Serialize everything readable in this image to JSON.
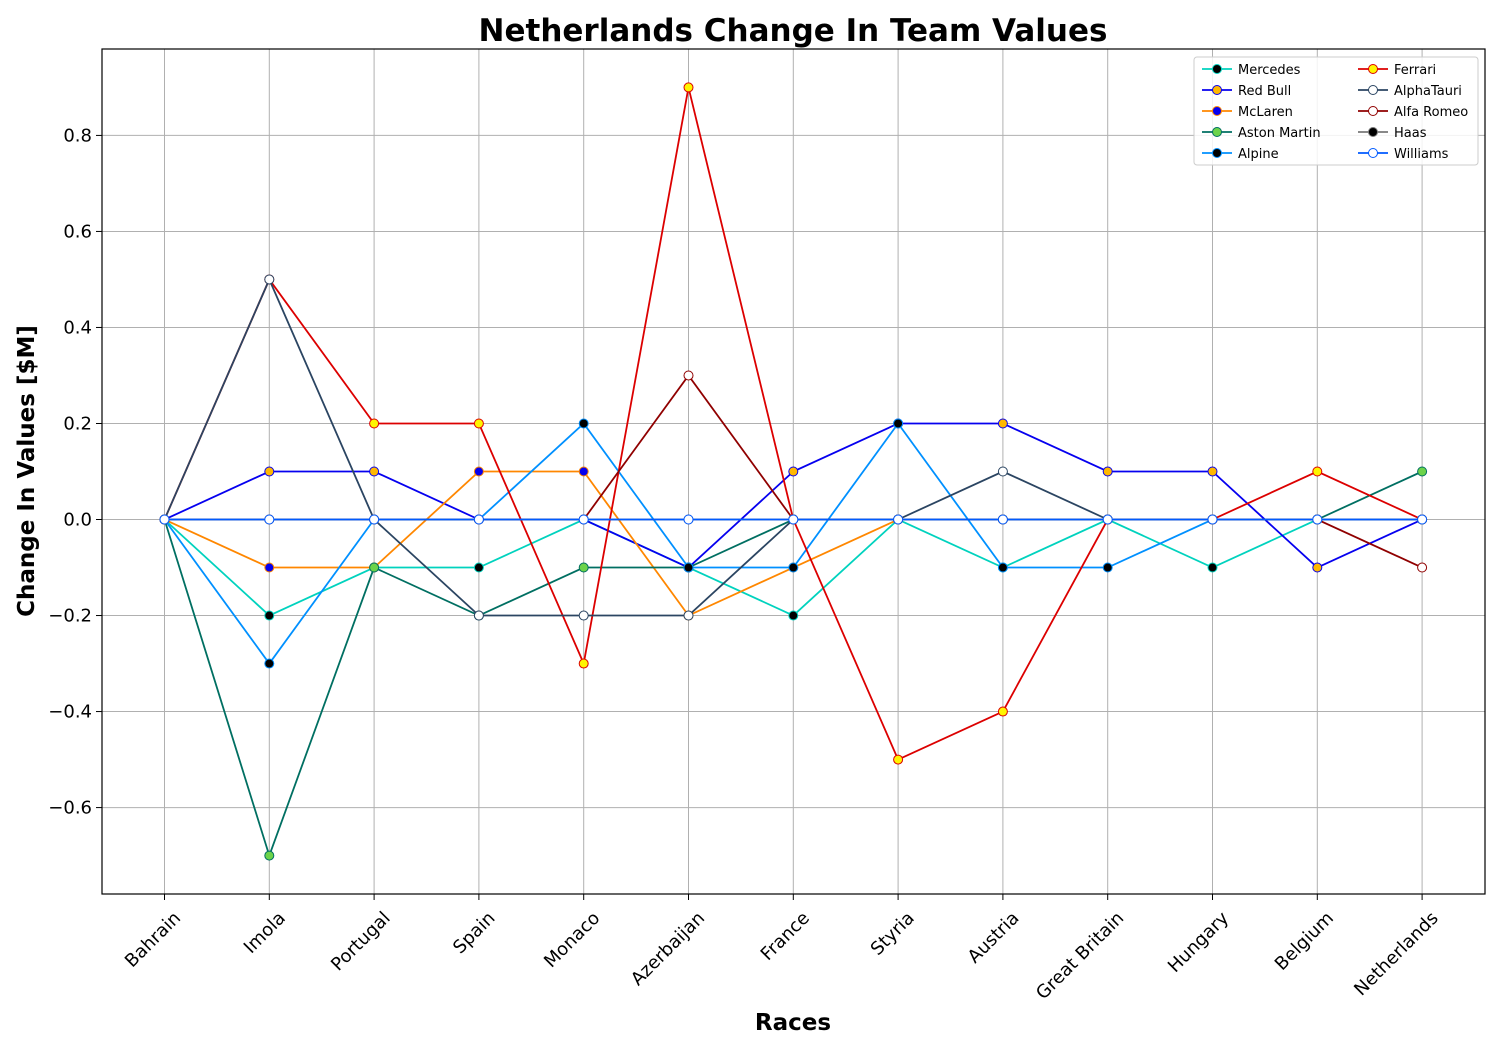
{
  "chart_data": {
    "type": "line",
    "title": "Netherlands Change In Team Values",
    "xlabel": "Races",
    "ylabel": "Change In Values [$M]",
    "categories": [
      "Bahrain",
      "Imola",
      "Portugal",
      "Spain",
      "Monaco",
      "Azerbaijan",
      "France",
      "Styria",
      "Austria",
      "Great Britain",
      "Hungary",
      "Belgium",
      "Netherlands"
    ],
    "ylim": [
      -0.78,
      0.98
    ],
    "yticks": [
      -0.6,
      -0.4,
      -0.2,
      0.0,
      0.2,
      0.4,
      0.6,
      0.8
    ],
    "ytick_labels": [
      "−0.6",
      "−0.4",
      "−0.2",
      "0.0",
      "0.2",
      "0.4",
      "0.6",
      "0.8"
    ],
    "grid": true,
    "legend": {
      "position": "top-right",
      "columns": 2
    },
    "series": [
      {
        "name": "Mercedes",
        "color": "#00d2be",
        "marker_face": "#000000",
        "values": [
          0,
          -0.2,
          -0.1,
          -0.1,
          0,
          -0.1,
          -0.2,
          0,
          -0.1,
          0,
          -0.1,
          0,
          0
        ]
      },
      {
        "name": "Red Bull",
        "color": "#0600ef",
        "marker_face": "#ffb800",
        "values": [
          0,
          0.1,
          0.1,
          0,
          0,
          -0.1,
          0.1,
          0.2,
          0.2,
          0.1,
          0.1,
          -0.1,
          0
        ]
      },
      {
        "name": "McLaren",
        "color": "#ff8700",
        "marker_face": "#0600ef",
        "values": [
          0,
          -0.1,
          -0.1,
          0.1,
          0.1,
          -0.2,
          -0.1,
          0,
          0,
          0,
          0,
          0,
          0
        ]
      },
      {
        "name": "Aston Martin",
        "color": "#006f62",
        "marker_face": "#6cd34a",
        "values": [
          0,
          -0.7,
          -0.1,
          -0.2,
          -0.1,
          -0.1,
          0,
          0,
          0,
          0,
          0,
          0,
          0.1
        ]
      },
      {
        "name": "Alpine",
        "color": "#0090ff",
        "marker_face": "#000000",
        "values": [
          0,
          -0.3,
          0,
          0,
          0.2,
          -0.1,
          -0.1,
          0.2,
          -0.1,
          -0.1,
          0,
          0,
          0
        ]
      },
      {
        "name": "Ferrari",
        "color": "#dc0000",
        "marker_face": "#fff500",
        "values": [
          0,
          0.5,
          0.2,
          0.2,
          -0.3,
          0.9,
          0,
          -0.5,
          -0.4,
          0,
          0,
          0.1,
          0
        ]
      },
      {
        "name": "AlphaTauri",
        "color": "#2b4562",
        "marker_face": "#ffffff",
        "values": [
          0,
          0.5,
          0,
          -0.2,
          -0.2,
          -0.2,
          0,
          0,
          0.1,
          0,
          0,
          0,
          0
        ]
      },
      {
        "name": "Alfa Romeo",
        "color": "#900000",
        "marker_face": "#ffffff",
        "values": [
          0,
          0,
          0,
          0,
          0,
          0.3,
          0,
          0,
          0,
          0,
          0,
          0,
          -0.1
        ]
      },
      {
        "name": "Haas",
        "color": "#787878",
        "marker_face": "#000000",
        "values": [
          0,
          0,
          0,
          0,
          0,
          0,
          0,
          0,
          0,
          0,
          0,
          0,
          0
        ]
      },
      {
        "name": "Williams",
        "color": "#005aff",
        "marker_face": "#ffffff",
        "values": [
          0,
          0,
          0,
          0,
          0,
          0,
          0,
          0,
          0,
          0,
          0,
          0,
          0
        ]
      }
    ]
  }
}
